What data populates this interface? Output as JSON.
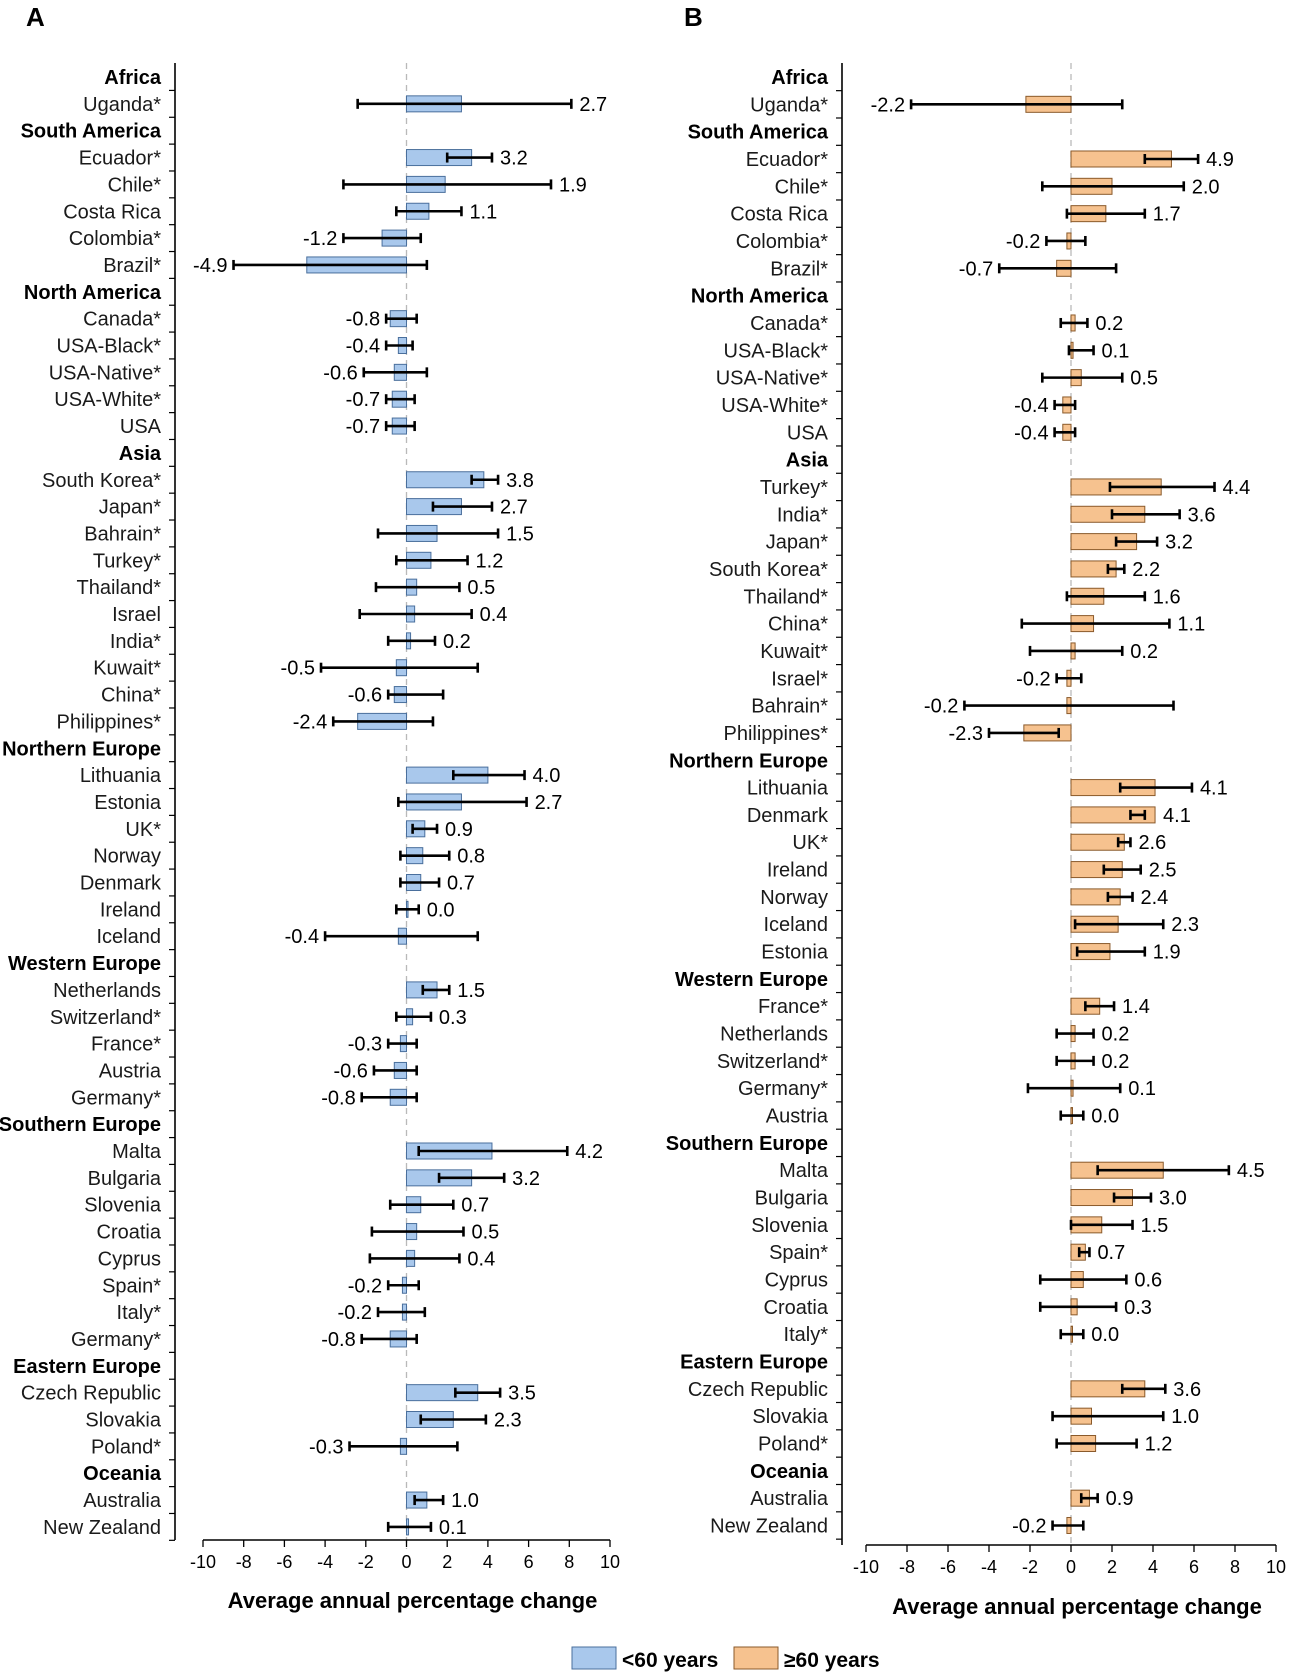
{
  "colors": {
    "under60_fill": "#a9c8ec",
    "under60_stroke": "#4a6f9c",
    "over60_fill": "#f6c28f",
    "over60_stroke": "#8a5a2b",
    "axis": "#000000",
    "zero_line": "#b9b9b9"
  },
  "legend": {
    "under60": "<60 years",
    "over60": "≥60 years"
  },
  "chart_data": [
    {
      "panel": "A",
      "type": "bar",
      "orientation": "horizontal",
      "series_name": "<60 years",
      "xlabel": "Average annual percentage change",
      "xlim": [
        -10,
        10
      ],
      "xticks": [
        -10,
        -8,
        -6,
        -4,
        -2,
        0,
        2,
        4,
        6,
        8,
        10
      ],
      "rows": [
        {
          "label": "Africa",
          "heading": true
        },
        {
          "label": "Uganda*",
          "value": 2.7,
          "ci": [
            -2.4,
            8.1
          ],
          "display": "2.7"
        },
        {
          "label": "South America",
          "heading": true
        },
        {
          "label": "Ecuador*",
          "value": 3.2,
          "ci": [
            2.0,
            4.2
          ],
          "display": "3.2"
        },
        {
          "label": "Chile*",
          "value": 1.9,
          "ci": [
            -3.1,
            7.1
          ],
          "display": "1.9"
        },
        {
          "label": "Costa Rica",
          "value": 1.1,
          "ci": [
            -0.5,
            2.7
          ],
          "display": "1.1"
        },
        {
          "label": "Colombia*",
          "value": -1.2,
          "ci": [
            -3.1,
            0.7
          ],
          "display": "-1.2"
        },
        {
          "label": "Brazil*",
          "value": -4.9,
          "ci": [
            -8.5,
            1.0
          ],
          "display": "-4.9"
        },
        {
          "label": "North America",
          "heading": true
        },
        {
          "label": "Canada*",
          "value": -0.8,
          "ci": [
            -1.0,
            0.5
          ],
          "display": "-0.8"
        },
        {
          "label": "USA-Black*",
          "value": -0.4,
          "ci": [
            -1.0,
            0.3
          ],
          "display": "-0.4"
        },
        {
          "label": "USA-Native*",
          "value": -0.6,
          "ci": [
            -2.1,
            1.0
          ],
          "display": "-0.6"
        },
        {
          "label": "USA-White*",
          "value": -0.7,
          "ci": [
            -1.0,
            0.4
          ],
          "display": "-0.7"
        },
        {
          "label": "USA",
          "value": -0.7,
          "ci": [
            -1.0,
            0.4
          ],
          "display": "-0.7"
        },
        {
          "label": "Asia",
          "heading": true
        },
        {
          "label": "South Korea*",
          "value": 3.8,
          "ci": [
            3.2,
            4.5
          ],
          "display": "3.8"
        },
        {
          "label": "Japan*",
          "value": 2.7,
          "ci": [
            1.3,
            4.2
          ],
          "display": "2.7"
        },
        {
          "label": "Bahrain*",
          "value": 1.5,
          "ci": [
            -1.4,
            4.5
          ],
          "display": "1.5"
        },
        {
          "label": "Turkey*",
          "value": 1.2,
          "ci": [
            -0.5,
            3.0
          ],
          "display": "1.2"
        },
        {
          "label": "Thailand*",
          "value": 0.5,
          "ci": [
            -1.5,
            2.6
          ],
          "display": "0.5"
        },
        {
          "label": "Israel",
          "value": 0.4,
          "ci": [
            -2.3,
            3.2
          ],
          "display": "0.4"
        },
        {
          "label": "India*",
          "value": 0.2,
          "ci": [
            -0.9,
            1.4
          ],
          "display": "0.2"
        },
        {
          "label": "Kuwait*",
          "value": -0.5,
          "ci": [
            -4.2,
            3.5
          ],
          "display": "-0.5"
        },
        {
          "label": "China*",
          "value": -0.6,
          "ci": [
            -0.9,
            1.8
          ],
          "display": "-0.6"
        },
        {
          "label": "Philippines*",
          "value": -2.4,
          "ci": [
            -3.6,
            1.3
          ],
          "display": "-2.4"
        },
        {
          "label": "Northern Europe",
          "heading": true
        },
        {
          "label": "Lithuania",
          "value": 4.0,
          "ci": [
            2.3,
            5.8
          ],
          "display": "4.0"
        },
        {
          "label": "Estonia",
          "value": 2.7,
          "ci": [
            -0.4,
            5.9
          ],
          "display": "2.7"
        },
        {
          "label": "UK*",
          "value": 0.9,
          "ci": [
            0.3,
            1.5
          ],
          "display": "0.9"
        },
        {
          "label": "Norway",
          "value": 0.8,
          "ci": [
            -0.3,
            2.1
          ],
          "display": "0.8"
        },
        {
          "label": "Denmark",
          "value": 0.7,
          "ci": [
            -0.3,
            1.6
          ],
          "display": "0.7"
        },
        {
          "label": "Ireland",
          "value": 0.0,
          "ci": [
            -0.5,
            0.6
          ],
          "display": "0.0"
        },
        {
          "label": "Iceland",
          "value": -0.4,
          "ci": [
            -4.0,
            3.5
          ],
          "display": "-0.4"
        },
        {
          "label": "Western Europe",
          "heading": true
        },
        {
          "label": "Netherlands",
          "value": 1.5,
          "ci": [
            0.8,
            2.1
          ],
          "display": "1.5"
        },
        {
          "label": "Switzerland*",
          "value": 0.3,
          "ci": [
            -0.5,
            1.2
          ],
          "display": "0.3"
        },
        {
          "label": "France*",
          "value": -0.3,
          "ci": [
            -0.9,
            0.5
          ],
          "display": "-0.3"
        },
        {
          "label": "Austria",
          "value": -0.6,
          "ci": [
            -1.6,
            0.5
          ],
          "display": "-0.6"
        },
        {
          "label": "Germany*",
          "value": -0.8,
          "ci": [
            -2.2,
            0.5
          ],
          "display": "-0.8"
        },
        {
          "label": "Southern Europe",
          "heading": true
        },
        {
          "label": "Malta",
          "value": 4.2,
          "ci": [
            0.6,
            7.9
          ],
          "display": "4.2"
        },
        {
          "label": "Bulgaria",
          "value": 3.2,
          "ci": [
            1.6,
            4.8
          ],
          "display": "3.2"
        },
        {
          "label": "Slovenia",
          "value": 0.7,
          "ci": [
            -0.8,
            2.3
          ],
          "display": "0.7"
        },
        {
          "label": "Croatia",
          "value": 0.5,
          "ci": [
            -1.7,
            2.8
          ],
          "display": "0.5"
        },
        {
          "label": "Cyprus",
          "value": 0.4,
          "ci": [
            -1.8,
            2.6
          ],
          "display": "0.4"
        },
        {
          "label": "Spain*",
          "value": -0.2,
          "ci": [
            -0.9,
            0.6
          ],
          "display": "-0.2"
        },
        {
          "label": "Italy*",
          "value": -0.2,
          "ci": [
            -1.4,
            0.9
          ],
          "display": "-0.2"
        },
        {
          "label": "Germany*",
          "value": -0.8,
          "ci": [
            -2.2,
            0.5
          ],
          "display": "-0.8"
        },
        {
          "label": "Eastern Europe",
          "heading": true
        },
        {
          "label": "Czech Republic",
          "value": 3.5,
          "ci": [
            2.4,
            4.6
          ],
          "display": "3.5"
        },
        {
          "label": "Slovakia",
          "value": 2.3,
          "ci": [
            0.7,
            3.9
          ],
          "display": "2.3"
        },
        {
          "label": "Poland*",
          "value": -0.3,
          "ci": [
            -2.8,
            2.5
          ],
          "display": "-0.3"
        },
        {
          "label": "Oceania",
          "heading": true
        },
        {
          "label": "Australia",
          "value": 1.0,
          "ci": [
            0.4,
            1.8
          ],
          "display": "1.0"
        },
        {
          "label": "New Zealand",
          "value": 0.1,
          "ci": [
            -0.9,
            1.2
          ],
          "display": "0.1"
        }
      ]
    },
    {
      "panel": "B",
      "type": "bar",
      "orientation": "horizontal",
      "series_name": "≥60 years",
      "xlabel": "Average annual percentage change",
      "xlim": [
        -10,
        10
      ],
      "xticks": [
        -10,
        -8,
        -6,
        -4,
        -2,
        0,
        2,
        4,
        6,
        8,
        10
      ],
      "rows": [
        {
          "label": "Africa",
          "heading": true
        },
        {
          "label": "Uganda*",
          "value": -2.2,
          "ci": [
            -7.8,
            2.5
          ],
          "display": "-2.2"
        },
        {
          "label": "South America",
          "heading": true
        },
        {
          "label": "Ecuador*",
          "value": 4.9,
          "ci": [
            3.6,
            6.2
          ],
          "display": "4.9"
        },
        {
          "label": "Chile*",
          "value": 2.0,
          "ci": [
            -1.4,
            5.5
          ],
          "display": "2.0"
        },
        {
          "label": "Costa Rica",
          "value": 1.7,
          "ci": [
            -0.2,
            3.6
          ],
          "display": "1.7"
        },
        {
          "label": "Colombia*",
          "value": -0.2,
          "ci": [
            -1.2,
            0.7
          ],
          "display": "-0.2"
        },
        {
          "label": "Brazil*",
          "value": -0.7,
          "ci": [
            -3.5,
            2.2
          ],
          "display": "-0.7"
        },
        {
          "label": "North America",
          "heading": true
        },
        {
          "label": "Canada*",
          "value": 0.2,
          "ci": [
            -0.5,
            0.8
          ],
          "display": "0.2"
        },
        {
          "label": "USA-Black*",
          "value": 0.1,
          "ci": [
            -0.1,
            1.1
          ],
          "display": "0.1"
        },
        {
          "label": "USA-Native*",
          "value": 0.5,
          "ci": [
            -1.4,
            2.5
          ],
          "display": "0.5"
        },
        {
          "label": "USA-White*",
          "value": -0.4,
          "ci": [
            -0.8,
            0.2
          ],
          "display": "-0.4"
        },
        {
          "label": "USA",
          "value": -0.4,
          "ci": [
            -0.8,
            0.2
          ],
          "display": "-0.4"
        },
        {
          "label": "Asia",
          "heading": true
        },
        {
          "label": "Turkey*",
          "value": 4.4,
          "ci": [
            1.9,
            7.0
          ],
          "display": "4.4"
        },
        {
          "label": "India*",
          "value": 3.6,
          "ci": [
            2.0,
            5.3
          ],
          "display": "3.6"
        },
        {
          "label": "Japan*",
          "value": 3.2,
          "ci": [
            2.2,
            4.2
          ],
          "display": "3.2"
        },
        {
          "label": "South Korea*",
          "value": 2.2,
          "ci": [
            1.8,
            2.6
          ],
          "display": "2.2"
        },
        {
          "label": "Thailand*",
          "value": 1.6,
          "ci": [
            -0.2,
            3.6
          ],
          "display": "1.6"
        },
        {
          "label": "China*",
          "value": 1.1,
          "ci": [
            -2.4,
            4.8
          ],
          "display": "1.1"
        },
        {
          "label": "Kuwait*",
          "value": 0.2,
          "ci": [
            -2.0,
            2.5
          ],
          "display": "0.2"
        },
        {
          "label": "Israel*",
          "value": -0.2,
          "ci": [
            -0.7,
            0.5
          ],
          "display": "-0.2"
        },
        {
          "label": "Bahrain*",
          "value": -0.2,
          "ci": [
            -5.2,
            5.0
          ],
          "display": "-0.2"
        },
        {
          "label": "Philippines*",
          "value": -2.3,
          "ci": [
            -4.0,
            -0.6
          ],
          "display": "-2.3"
        },
        {
          "label": "Northern Europe",
          "heading": true
        },
        {
          "label": "Lithuania",
          "value": 4.1,
          "ci": [
            2.4,
            5.9
          ],
          "display": "4.1"
        },
        {
          "label": "Denmark",
          "value": 4.1,
          "ci": [
            2.9,
            3.6
          ],
          "display": "4.1"
        },
        {
          "label": "UK*",
          "value": 2.6,
          "ci": [
            2.3,
            2.9
          ],
          "display": "2.6"
        },
        {
          "label": "Ireland",
          "value": 2.5,
          "ci": [
            1.6,
            3.4
          ],
          "display": "2.5"
        },
        {
          "label": "Norway",
          "value": 2.4,
          "ci": [
            1.8,
            3.0
          ],
          "display": "2.4"
        },
        {
          "label": "Iceland",
          "value": 2.3,
          "ci": [
            0.2,
            4.5
          ],
          "display": "2.3"
        },
        {
          "label": "Estonia",
          "value": 1.9,
          "ci": [
            0.3,
            3.6
          ],
          "display": "1.9"
        },
        {
          "label": "Western Europe",
          "heading": true
        },
        {
          "label": "France*",
          "value": 1.4,
          "ci": [
            0.7,
            2.1
          ],
          "display": "1.4"
        },
        {
          "label": "Netherlands",
          "value": 0.2,
          "ci": [
            -0.7,
            1.1
          ],
          "display": "0.2"
        },
        {
          "label": "Switzerland*",
          "value": 0.2,
          "ci": [
            -0.7,
            1.1
          ],
          "display": "0.2"
        },
        {
          "label": "Germany*",
          "value": 0.1,
          "ci": [
            -2.1,
            2.4
          ],
          "display": "0.1"
        },
        {
          "label": "Austria",
          "value": 0.0,
          "ci": [
            -0.5,
            0.6
          ],
          "display": "0.0"
        },
        {
          "label": "Southern Europe",
          "heading": true
        },
        {
          "label": "Malta",
          "value": 4.5,
          "ci": [
            1.3,
            7.7
          ],
          "display": "4.5"
        },
        {
          "label": "Bulgaria",
          "value": 3.0,
          "ci": [
            2.1,
            3.9
          ],
          "display": "3.0"
        },
        {
          "label": "Slovenia",
          "value": 1.5,
          "ci": [
            0.0,
            3.0
          ],
          "display": "1.5"
        },
        {
          "label": "Spain*",
          "value": 0.7,
          "ci": [
            0.4,
            0.9
          ],
          "display": "0.7"
        },
        {
          "label": "Cyprus",
          "value": 0.6,
          "ci": [
            -1.5,
            2.7
          ],
          "display": "0.6"
        },
        {
          "label": "Croatia",
          "value": 0.3,
          "ci": [
            -1.5,
            2.2
          ],
          "display": "0.3"
        },
        {
          "label": "Italy*",
          "value": 0.0,
          "ci": [
            -0.5,
            0.6
          ],
          "display": "0.0"
        },
        {
          "label": "Eastern Europe",
          "heading": true
        },
        {
          "label": "Czech Republic",
          "value": 3.6,
          "ci": [
            2.5,
            4.6
          ],
          "display": "3.6"
        },
        {
          "label": "Slovakia",
          "value": 1.0,
          "ci": [
            -0.9,
            4.5
          ],
          "display": "1.0"
        },
        {
          "label": "Poland*",
          "value": 1.2,
          "ci": [
            -0.7,
            3.2
          ],
          "display": "1.2"
        },
        {
          "label": "Oceania",
          "heading": true
        },
        {
          "label": "Australia",
          "value": 0.9,
          "ci": [
            0.5,
            1.3
          ],
          "display": "0.9"
        },
        {
          "label": "New Zealand",
          "value": -0.2,
          "ci": [
            -0.9,
            0.6
          ],
          "display": "-0.2"
        }
      ]
    }
  ]
}
